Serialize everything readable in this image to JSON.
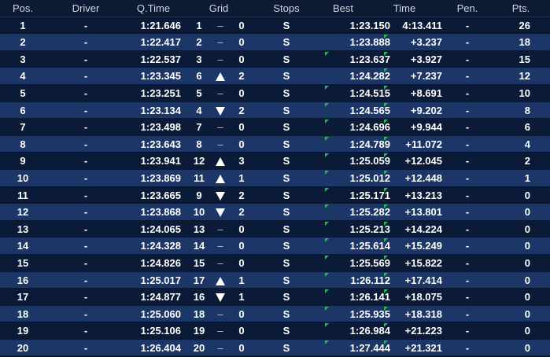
{
  "colors": {
    "background": "#0b1c38",
    "row_odd": "#0b1a36",
    "row_even": "#1c3767",
    "header": "#0c1a33",
    "marker": "#1fbf4a"
  },
  "headers": {
    "pos": "Pos.",
    "driver": "Driver",
    "qtime": "Q.Time",
    "grid": "Grid",
    "stops": "Stops",
    "best": "Best",
    "time": "Time",
    "pen": "Pen.",
    "pts": "Pts."
  },
  "rows": [
    {
      "pos": "1",
      "driver": "-",
      "qtime": "1:21.646",
      "grid": "1",
      "change": "none",
      "change_val": "0",
      "stops": "S",
      "best": "1:23.150",
      "time": "4:13.411",
      "pen": "-",
      "pts": "26",
      "best_marker": false,
      "time_marker": false
    },
    {
      "pos": "2",
      "driver": "-",
      "qtime": "1:22.417",
      "grid": "2",
      "change": "none",
      "change_val": "0",
      "stops": "S",
      "best": "1:23.888",
      "time": "+3.237",
      "pen": "-",
      "pts": "18",
      "best_marker": false,
      "time_marker": true
    },
    {
      "pos": "3",
      "driver": "-",
      "qtime": "1:22.537",
      "grid": "3",
      "change": "none",
      "change_val": "0",
      "stops": "S",
      "best": "1:23.637",
      "time": "+3.927",
      "pen": "-",
      "pts": "15",
      "best_marker": true,
      "time_marker": true
    },
    {
      "pos": "4",
      "driver": "-",
      "qtime": "1:23.345",
      "grid": "6",
      "change": "up",
      "change_val": "2",
      "stops": "S",
      "best": "1:24.282",
      "time": "+7.237",
      "pen": "-",
      "pts": "12",
      "best_marker": false,
      "time_marker": true
    },
    {
      "pos": "5",
      "driver": "-",
      "qtime": "1:23.251",
      "grid": "5",
      "change": "none",
      "change_val": "0",
      "stops": "S",
      "best": "1:24.515",
      "time": "+8.691",
      "pen": "-",
      "pts": "10",
      "best_marker": true,
      "time_marker": true
    },
    {
      "pos": "6",
      "driver": "-",
      "qtime": "1:23.134",
      "grid": "4",
      "change": "down",
      "change_val": "2",
      "stops": "S",
      "best": "1:24.565",
      "time": "+9.202",
      "pen": "-",
      "pts": "8",
      "best_marker": true,
      "time_marker": true
    },
    {
      "pos": "7",
      "driver": "-",
      "qtime": "1:23.498",
      "grid": "7",
      "change": "none",
      "change_val": "0",
      "stops": "S",
      "best": "1:24.696",
      "time": "+9.944",
      "pen": "-",
      "pts": "6",
      "best_marker": true,
      "time_marker": true
    },
    {
      "pos": "8",
      "driver": "-",
      "qtime": "1:23.643",
      "grid": "8",
      "change": "none",
      "change_val": "0",
      "stops": "S",
      "best": "1:24.789",
      "time": "+11.072",
      "pen": "-",
      "pts": "4",
      "best_marker": true,
      "time_marker": true
    },
    {
      "pos": "9",
      "driver": "-",
      "qtime": "1:23.941",
      "grid": "12",
      "change": "up",
      "change_val": "3",
      "stops": "S",
      "best": "1:25.059",
      "time": "+12.045",
      "pen": "-",
      "pts": "2",
      "best_marker": true,
      "time_marker": true
    },
    {
      "pos": "10",
      "driver": "-",
      "qtime": "1:23.869",
      "grid": "11",
      "change": "up",
      "change_val": "1",
      "stops": "S",
      "best": "1:25.012",
      "time": "+12.448",
      "pen": "-",
      "pts": "1",
      "best_marker": true,
      "time_marker": true
    },
    {
      "pos": "11",
      "driver": "-",
      "qtime": "1:23.665",
      "grid": "9",
      "change": "down",
      "change_val": "2",
      "stops": "S",
      "best": "1:25.171",
      "time": "+13.213",
      "pen": "-",
      "pts": "0",
      "best_marker": true,
      "time_marker": true
    },
    {
      "pos": "12",
      "driver": "-",
      "qtime": "1:23.868",
      "grid": "10",
      "change": "down",
      "change_val": "2",
      "stops": "S",
      "best": "1:25.282",
      "time": "+13.801",
      "pen": "-",
      "pts": "0",
      "best_marker": true,
      "time_marker": true
    },
    {
      "pos": "13",
      "driver": "-",
      "qtime": "1:24.065",
      "grid": "13",
      "change": "none",
      "change_val": "0",
      "stops": "S",
      "best": "1:25.213",
      "time": "+14.224",
      "pen": "-",
      "pts": "0",
      "best_marker": true,
      "time_marker": true
    },
    {
      "pos": "14",
      "driver": "-",
      "qtime": "1:24.328",
      "grid": "14",
      "change": "none",
      "change_val": "0",
      "stops": "S",
      "best": "1:25.614",
      "time": "+15.249",
      "pen": "-",
      "pts": "0",
      "best_marker": true,
      "time_marker": true
    },
    {
      "pos": "15",
      "driver": "-",
      "qtime": "1:24.826",
      "grid": "15",
      "change": "none",
      "change_val": "0",
      "stops": "S",
      "best": "1:25.569",
      "time": "+15.822",
      "pen": "-",
      "pts": "0",
      "best_marker": true,
      "time_marker": true
    },
    {
      "pos": "16",
      "driver": "-",
      "qtime": "1:25.017",
      "grid": "17",
      "change": "up",
      "change_val": "1",
      "stops": "S",
      "best": "1:26.112",
      "time": "+17.414",
      "pen": "-",
      "pts": "0",
      "best_marker": true,
      "time_marker": true
    },
    {
      "pos": "17",
      "driver": "-",
      "qtime": "1:24.877",
      "grid": "16",
      "change": "down",
      "change_val": "1",
      "stops": "S",
      "best": "1:26.141",
      "time": "+18.075",
      "pen": "-",
      "pts": "0",
      "best_marker": true,
      "time_marker": true
    },
    {
      "pos": "18",
      "driver": "-",
      "qtime": "1:25.060",
      "grid": "18",
      "change": "none",
      "change_val": "0",
      "stops": "S",
      "best": "1:25.935",
      "time": "+18.318",
      "pen": "-",
      "pts": "0",
      "best_marker": true,
      "time_marker": true
    },
    {
      "pos": "19",
      "driver": "-",
      "qtime": "1:25.106",
      "grid": "19",
      "change": "none",
      "change_val": "0",
      "stops": "S",
      "best": "1:26.984",
      "time": "+21.223",
      "pen": "-",
      "pts": "0",
      "best_marker": true,
      "time_marker": true
    },
    {
      "pos": "20",
      "driver": "-",
      "qtime": "1:26.404",
      "grid": "20",
      "change": "none",
      "change_val": "0",
      "stops": "S",
      "best": "1:27.444",
      "time": "+21.321",
      "pen": "-",
      "pts": "0",
      "best_marker": true,
      "time_marker": true
    }
  ]
}
